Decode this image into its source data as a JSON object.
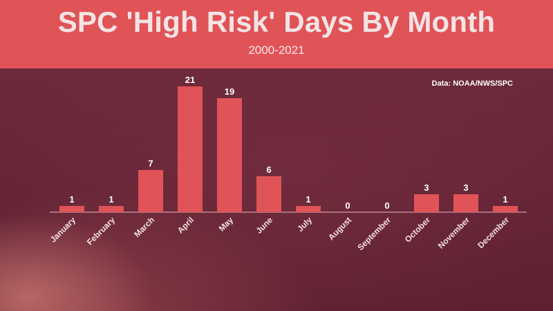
{
  "header": {
    "title": "SPC 'High Risk' Days By Month",
    "subtitle": "2000-2021",
    "source": "Data: NOAA/NWS/SPC"
  },
  "colors": {
    "header_bg": "#e05357",
    "bar": "#e05357",
    "background": "#6a2a3a"
  },
  "chart_data": {
    "type": "bar",
    "title": "SPC 'High Risk' Days By Month",
    "subtitle": "2000-2021",
    "categories": [
      "January",
      "February",
      "March",
      "April",
      "May",
      "June",
      "July",
      "August",
      "September",
      "October",
      "November",
      "December"
    ],
    "values": [
      1,
      1,
      7,
      21,
      19,
      6,
      1,
      0,
      0,
      3,
      3,
      1
    ],
    "data_labels": [
      "1",
      "1",
      "7",
      "21",
      "19",
      "6",
      "1",
      "0",
      "0",
      "3",
      "3",
      "1"
    ],
    "ylim": [
      0,
      21
    ],
    "grid": false,
    "legend": "none",
    "source": "Data: NOAA/NWS/SPC"
  }
}
